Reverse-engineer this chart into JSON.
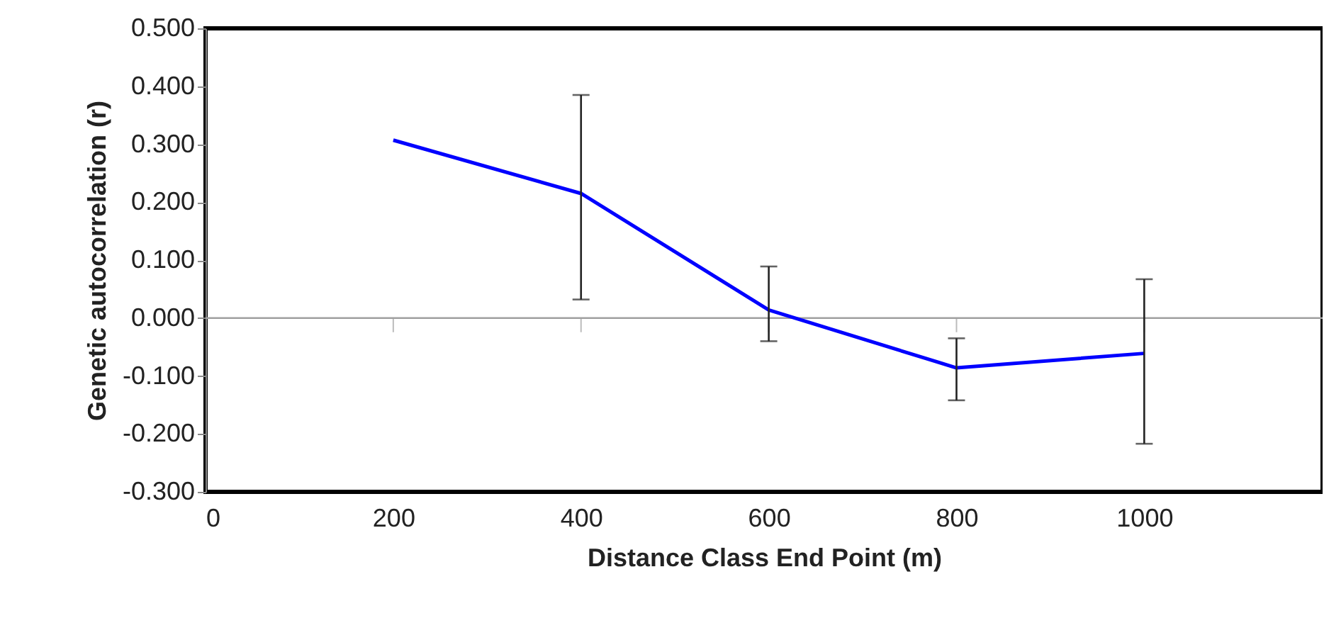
{
  "chart_data": {
    "type": "line",
    "xlabel": "Distance Class End Point (m)",
    "ylabel": "Genetic autocorrelation (r)",
    "x": [
      200,
      400,
      600,
      800,
      1000
    ],
    "series": [
      {
        "color": "#0000ff",
        "values": [
          0.307,
          0.215,
          0.014,
          -0.086,
          -0.061
        ],
        "errors": [
          null,
          [
            0.032,
            0.385
          ],
          [
            -0.04,
            0.089
          ],
          [
            -0.142,
            -0.035
          ],
          [
            -0.217,
            0.067
          ]
        ]
      }
    ],
    "xlim": [
      0,
      1190
    ],
    "xticks": [
      0,
      200,
      400,
      600,
      800,
      1000
    ],
    "ylim": [
      -0.3,
      0.5
    ],
    "yticks": [
      {
        "value": -0.3,
        "label": "-0.300"
      },
      {
        "value": -0.2,
        "label": "-0.200"
      },
      {
        "value": -0.1,
        "label": "-0.100"
      },
      {
        "value": 0,
        "label": "0.000"
      },
      {
        "value": 0.1,
        "label": "0.100"
      },
      {
        "value": 0.2,
        "label": "0.200"
      },
      {
        "value": 0.3,
        "label": "0.300"
      },
      {
        "value": 0.4,
        "label": "0.400"
      },
      {
        "value": 0.5,
        "label": "0.500"
      }
    ],
    "ref_lines": [
      {
        "axis": "y",
        "value": 0,
        "color": "#a0a0a0"
      }
    ],
    "grid": false,
    "marker": "none",
    "line_style": "solid"
  }
}
